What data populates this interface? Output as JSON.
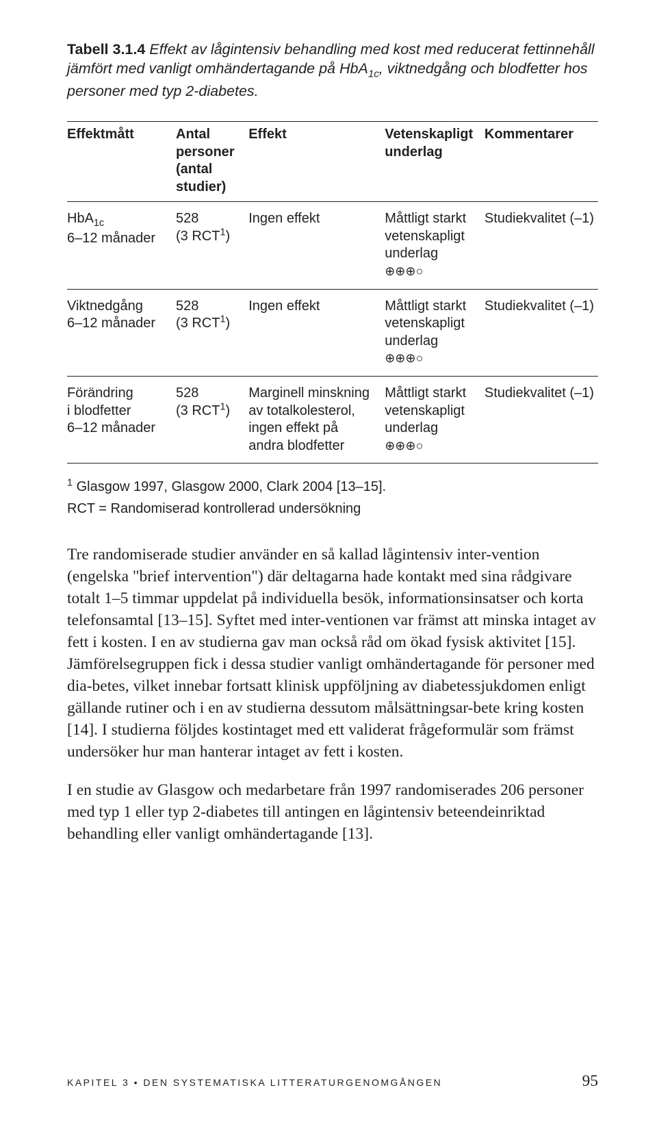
{
  "caption": {
    "label": "Tabell 3.1.4",
    "text_before_sub": " Effekt av lågintensiv behandling med kost med reducerat fettinnehåll jämfört med vanligt omhändertagande på HbA",
    "sub": "1c",
    "text_after_sub": ", viktnedgång och blodfetter hos personer med typ 2-diabetes."
  },
  "table": {
    "headers": {
      "c1": "Effektmått",
      "c2_l1": "Antal",
      "c2_l2": "personer",
      "c2_l3": "(antal",
      "c2_l4": "studier)",
      "c3": "Effekt",
      "c4_l1": "Vetenskapligt",
      "c4_l2": "underlag",
      "c5": "Kommentarer"
    },
    "grade_symbols": "⊕⊕⊕○",
    "rows": [
      {
        "c1_l1_pre": "HbA",
        "c1_l1_sub": "1c",
        "c1_l2": "6–12 månader",
        "c2_l1": "528",
        "c2_l2_pre": "(3 RCT",
        "c2_l2_suf": ")",
        "c3_l1": "Ingen effekt",
        "c3_l2": "",
        "c3_l3": "",
        "c3_l4": "",
        "c4_l1": "Måttligt starkt",
        "c4_l2": "vetenskapligt",
        "c4_l3": "underlag",
        "c5": "Studiekvalitet (–1)"
      },
      {
        "c1_l1_pre": "Viktnedgång",
        "c1_l1_sub": "",
        "c1_l2": "6–12 månader",
        "c2_l1": "528",
        "c2_l2_pre": "(3 RCT",
        "c2_l2_suf": ")",
        "c3_l1": "Ingen effekt",
        "c3_l2": "",
        "c3_l3": "",
        "c3_l4": "",
        "c4_l1": "Måttligt starkt",
        "c4_l2": "vetenskapligt",
        "c4_l3": "underlag",
        "c5": "Studiekvalitet (–1)"
      },
      {
        "c1_l1_pre": "Förändring",
        "c1_l1_sub": "",
        "c1_l2": "i blodfetter",
        "c1_l3": "6–12 månader",
        "c2_l1": "528",
        "c2_l2_pre": "(3 RCT",
        "c2_l2_suf": ")",
        "c3_l1": "Marginell minskning",
        "c3_l2": "av totalkolesterol,",
        "c3_l3": "ingen effekt på",
        "c3_l4": "andra blodfetter",
        "c4_l1": "Måttligt starkt",
        "c4_l2": "vetenskapligt",
        "c4_l3": "underlag",
        "c5": "Studiekvalitet (–1)"
      }
    ]
  },
  "footnotes": {
    "sup": "1",
    "f1": " Glasgow 1997, Glasgow 2000, Clark 2004 [13–15].",
    "f2": "RCT = Randomiserad kontrollerad undersökning"
  },
  "body": {
    "p1": "Tre randomiserade studier använder en så kallad lågintensiv inter-vention (engelska \"brief intervention\") där deltagarna hade kontakt med sina rådgivare totalt 1–5 timmar uppdelat på individuella besök, informationsinsatser och korta telefonsamtal [13–15]. Syftet med inter-ventionen var främst att minska intaget av fett i kosten. I en av studierna gav man också råd om ökad fysisk aktivitet [15]. Jämförelsegruppen fick i dessa studier vanligt omhändertagande för personer med dia-betes, vilket innebar fortsatt klinisk uppföljning av diabetessjukdomen enligt gällande rutiner och i en av studierna dessutom målsättningsar-bete kring kosten [14]. I studierna följdes kostintaget med ett validerat frågeformulär som främst undersöker hur man hanterar intaget av fett i kosten.",
    "p2": "I en studie av Glasgow och medarbetare från 1997 randomiserades 206 personer med typ 1 eller typ 2-diabetes till antingen en lågintensiv beteendeinriktad behandling eller vanligt omhändertagande [13]."
  },
  "footer": {
    "left": "KAPITEL 3 • DEN SYSTEMATISKA LITTERATURGENOMGÅNGEN",
    "pagenum": "95"
  }
}
